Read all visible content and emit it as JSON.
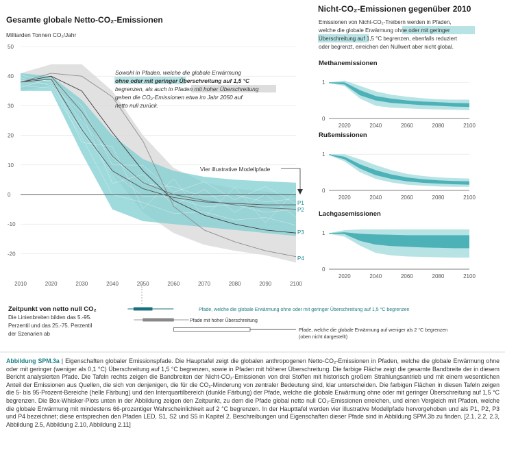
{
  "main": {
    "title": "Gesamte globale Netto-CO₂-Emissionen",
    "unit": "Milliarden Tonnen CO₂/Jahr",
    "annotation_lines": [
      "Sowohl in Pfaden, welche die globale Erwärmung",
      "ohne oder mit geringer Überschreitung auf 1,5 °C",
      "begrenzen, als auch in Pfaden mit hoher Überschreitung",
      "gehen die CO₂-Emissionen etwa im Jahr 2050 auf",
      "netto null zurück."
    ],
    "illustrative_label": "Vier illustrative Modellpfade",
    "path_labels": [
      "P1",
      "P2",
      "P3",
      "P4"
    ]
  },
  "right": {
    "title": "Nicht-CO₂-Emissionen gegenüber 2010",
    "desc_lines": [
      "Emissionen von Nicht-CO₂-Treibern werden in Pfaden,",
      "welche die globale Erwärmung ohne oder mit geringer",
      "Überschreitung auf 1,5 °C begrenzen, ebenfalls reduziert",
      "oder begrenzt, erreichen den Nullwert aber nicht global."
    ],
    "panels": [
      "Methanemissionen",
      "Rußemissionen",
      "Lachgasemissionen"
    ]
  },
  "boxplot": {
    "title": "Zeitpunkt von netto null CO₂",
    "desc_lines": [
      "Die Linienbreiten bilden das 5.-95.",
      "Perzentil und das 25.-75. Perzentil",
      "der Szenarien ab"
    ],
    "row1": "Pfade, welche die globale Erwärmung ohne oder mit geringer Überschreitung auf 1,5 °C begrenzen",
    "row2": "Pfade mit hoher Überschreitung",
    "row3_lines": [
      "Pfade, welche die globale Erwärmung auf weniger als 2 °C begrenzen",
      "(oben nicht dargestellt)"
    ]
  },
  "caption": {
    "label": "Abbildung SPM.3a",
    "text": "| Eigenschaften globaler Emissionspfade. Die Haupttafel zeigt die globalen anthropogenen Netto-CO₂-Emissionen in Pfaden, welche die globale Erwärmung ohne oder mit geringer (weniger als 0,1 °C) Überschreitung auf 1,5 °C begrenzen, sowie in Pfaden mit höherer Überschreitung. Die farbige Fläche zeigt die gesamte Bandbreite der in diesem Bericht analysierten Pfade. Die Tafeln rechts zeigen die Bandbreiten der Nicht-CO₂-Emissionen von drei Stoffen mit historisch großem Strahlungsantrieb und mit einem wesentlichen Anteil der Emissionen aus Quellen, die sich von denjenigen, die für die CO₂-Minderung von zentraler Bedeutung sind, klar unterscheiden. Die farbigen Flächen in diesen Tafeln zeigen die 5- bis 95-Prozent-Bereiche (helle Färbung) und den Interquartilbereich (dunkle Färbung) der Pfade, welche die globale Erwärmung ohne oder mit geringer Überschreitung auf 1,5 °C begrenzen. Die Box-Whisker-Plots unten in der Abbildung zeigen den Zeitpunkt, zu dem die Pfade global netto null CO₂-Emissionen erreichen, und einen Vergleich mit Pfaden, welche die globale Erwärmung mit mindestens 66-prozentiger Wahrscheinlichkeit auf 2 °C begrenzen. In der Haupttafel werden vier illustrative Modellpfade hervorgehoben und als P1, P2, P3 und P4 bezeichnet; diese entsprechen den Pfaden LED, S1, S2 und S5 in Kapitel 2. Beschreibungen und Eigenschaften dieser Pfade sind in Abbildung SPM.3b zu finden. [2.1, 2.2, 2.3, Abbildung 2.5, Abbildung 2.10, Abbildung 2.11]"
  },
  "colors": {
    "teal_light": "#b8e3e5",
    "teal_mid": "#7fcdd1",
    "teal_dark": "#4db1b8",
    "grey_band": "#dcdcdc",
    "title_teal": "#1c7f86"
  },
  "chart_data": [
    {
      "type": "area",
      "title": "Gesamte globale Netto-CO₂-Emissionen",
      "ylabel": "Milliarden Tonnen CO₂/Jahr",
      "xlim": [
        2010,
        2100
      ],
      "ylim": [
        -25,
        50
      ],
      "x_ticks": [
        2010,
        2020,
        2030,
        2040,
        2050,
        2060,
        2070,
        2080,
        2090,
        2100
      ],
      "y_ticks": [
        -20,
        -10,
        0,
        10,
        20,
        30,
        40,
        50
      ],
      "x": [
        2010,
        2020,
        2030,
        2040,
        2050,
        2060,
        2070,
        2080,
        2090,
        2100
      ],
      "bands": [
        {
          "name": "Pfade mit hoher Überschreitung",
          "lower": [
            35,
            37,
            24,
            7,
            -6,
            -13,
            -17,
            -19,
            -20.5,
            -23
          ],
          "upper": [
            41,
            44,
            44,
            35,
            20,
            9,
            4,
            2,
            1,
            0
          ]
        },
        {
          "name": "Pfade, welche die globale Erwärmung ohne oder mit geringer Überschreitung auf 1,5 °C begrenzen",
          "lower": [
            35,
            35,
            14,
            -5,
            -9,
            -10,
            -11,
            -12,
            -13,
            -14
          ],
          "upper": [
            41,
            40,
            32,
            20,
            12,
            8,
            6,
            5,
            4.5,
            4
          ]
        }
      ],
      "series": [
        {
          "name": "P1",
          "values": [
            38,
            39,
            22,
            8,
            2,
            -1,
            -2.5,
            -3,
            -3.5,
            -3.5
          ]
        },
        {
          "name": "P2",
          "values": [
            38,
            40,
            28,
            13,
            4,
            0,
            -2,
            -3.5,
            -4.5,
            -5
          ]
        },
        {
          "name": "P3",
          "values": [
            38,
            40,
            35,
            21,
            8,
            -2,
            -7,
            -10,
            -12,
            -13
          ]
        },
        {
          "name": "P4",
          "values": [
            38,
            41,
            40,
            33,
            18,
            -4,
            -12,
            -16,
            -19,
            -21
          ]
        }
      ]
    },
    {
      "type": "area",
      "title": "Methanemissionen",
      "xlim": [
        2010,
        2100
      ],
      "ylim": [
        0,
        1.25
      ],
      "x_ticks": [
        2020,
        2040,
        2060,
        2080,
        2100
      ],
      "y_ticks": [
        0,
        1
      ],
      "x": [
        2010,
        2020,
        2030,
        2040,
        2050,
        2060,
        2070,
        2080,
        2090,
        2100
      ],
      "bands": [
        {
          "name": "5-95",
          "lower": [
            0.98,
            0.9,
            0.55,
            0.35,
            0.3,
            0.28,
            0.26,
            0.25,
            0.24,
            0.23
          ],
          "upper": [
            1.0,
            1.05,
            0.9,
            0.75,
            0.66,
            0.6,
            0.56,
            0.53,
            0.52,
            0.52
          ]
        },
        {
          "name": "25-75",
          "lower": [
            0.98,
            0.94,
            0.64,
            0.5,
            0.43,
            0.4,
            0.37,
            0.35,
            0.33,
            0.32
          ],
          "upper": [
            1.0,
            1.0,
            0.78,
            0.62,
            0.55,
            0.5,
            0.47,
            0.45,
            0.43,
            0.42
          ]
        }
      ]
    },
    {
      "type": "area",
      "title": "Rußemissionen",
      "xlim": [
        2010,
        2100
      ],
      "ylim": [
        0,
        1.25
      ],
      "x_ticks": [
        2020,
        2040,
        2060,
        2080,
        2100
      ],
      "y_ticks": [
        0,
        1
      ],
      "x": [
        2010,
        2020,
        2030,
        2040,
        2050,
        2060,
        2070,
        2080,
        2090,
        2100
      ],
      "bands": [
        {
          "name": "5-95",
          "lower": [
            0.98,
            0.8,
            0.5,
            0.32,
            0.22,
            0.16,
            0.13,
            0.11,
            0.1,
            0.1
          ],
          "upper": [
            1.0,
            1.0,
            0.86,
            0.7,
            0.56,
            0.46,
            0.4,
            0.36,
            0.34,
            0.33
          ]
        },
        {
          "name": "25-75",
          "lower": [
            0.98,
            0.86,
            0.6,
            0.42,
            0.32,
            0.25,
            0.21,
            0.19,
            0.17,
            0.16
          ],
          "upper": [
            1.0,
            0.93,
            0.72,
            0.56,
            0.44,
            0.36,
            0.31,
            0.28,
            0.26,
            0.25
          ]
        }
      ]
    },
    {
      "type": "area",
      "title": "Lachgasemissionen",
      "xlim": [
        2010,
        2100
      ],
      "ylim": [
        0,
        1.25
      ],
      "x_ticks": [
        2020,
        2040,
        2060,
        2080,
        2100
      ],
      "y_ticks": [
        0,
        1
      ],
      "x": [
        2010,
        2020,
        2030,
        2040,
        2050,
        2060,
        2070,
        2080,
        2090,
        2100
      ],
      "bands": [
        {
          "name": "5-95",
          "lower": [
            0.98,
            0.9,
            0.65,
            0.45,
            0.38,
            0.35,
            0.34,
            0.33,
            0.32,
            0.32
          ],
          "upper": [
            1.0,
            1.08,
            1.1,
            1.1,
            1.1,
            1.1,
            1.1,
            1.1,
            1.1,
            1.1
          ]
        },
        {
          "name": "25-75",
          "lower": [
            0.98,
            0.97,
            0.78,
            0.68,
            0.64,
            0.62,
            0.6,
            0.59,
            0.58,
            0.58
          ],
          "upper": [
            1.0,
            1.02,
            0.98,
            0.96,
            0.95,
            0.94,
            0.94,
            0.94,
            0.94,
            0.94
          ]
        }
      ]
    },
    {
      "type": "box",
      "title": "Zeitpunkt von netto null CO₂",
      "rows": [
        {
          "name": "Pfade, welche die globale Erwärmung ohne oder mit geringer Überschreitung auf 1,5 °C begrenzen",
          "whisker": [
            2045,
            2060
          ],
          "box": [
            2047,
            2053
          ]
        },
        {
          "name": "Pfade mit hoher Überschreitung",
          "whisker": [
            2047,
            2065
          ],
          "box": [
            2050,
            2060
          ]
        },
        {
          "name": "Pfade, welche die globale Erwärmung auf weniger als 2 °C begrenzen",
          "whisker": [
            2060,
            2100
          ],
          "box": [
            2060,
            2085
          ]
        }
      ]
    }
  ]
}
